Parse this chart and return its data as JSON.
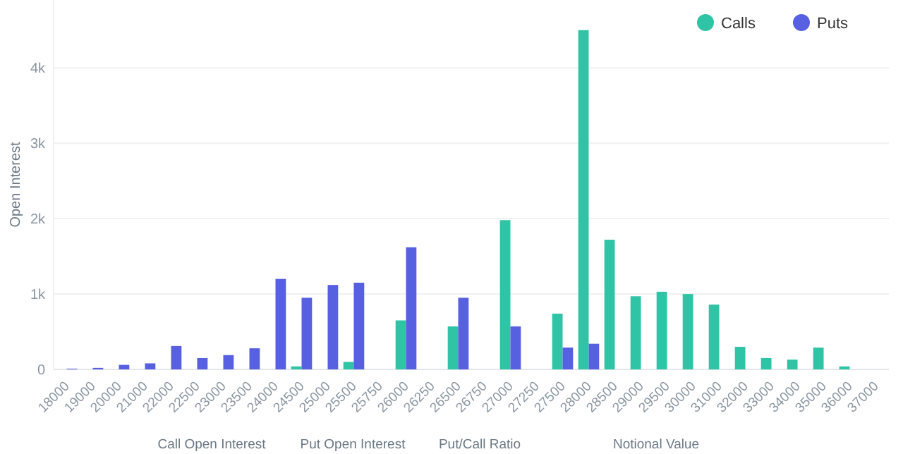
{
  "chart_data": {
    "type": "bar",
    "ylabel": "Open Interest",
    "categories": [
      "18000",
      "19000",
      "20000",
      "21000",
      "22000",
      "22500",
      "23000",
      "23500",
      "24000",
      "24500",
      "25000",
      "25500",
      "25750",
      "26000",
      "26250",
      "26500",
      "26750",
      "27000",
      "27250",
      "27500",
      "28000",
      "28500",
      "29000",
      "29500",
      "30000",
      "31000",
      "32000",
      "33000",
      "34000",
      "35000",
      "36000",
      "37000"
    ],
    "series": [
      {
        "name": "Calls",
        "color": "#2ec4a5",
        "values": [
          null,
          null,
          null,
          null,
          null,
          null,
          null,
          null,
          null,
          40,
          null,
          100,
          null,
          650,
          null,
          570,
          null,
          1980,
          null,
          740,
          4500,
          1720,
          970,
          1030,
          1000,
          860,
          300,
          150,
          130,
          290,
          40,
          null
        ]
      },
      {
        "name": "Puts",
        "color": "#5660e0",
        "values": [
          10,
          20,
          60,
          80,
          310,
          150,
          190,
          280,
          1200,
          950,
          1120,
          1150,
          null,
          1620,
          null,
          950,
          null,
          570,
          null,
          290,
          340,
          null,
          null,
          null,
          null,
          null,
          null,
          null,
          null,
          null,
          null,
          null
        ]
      }
    ],
    "ylim": [
      0,
      4900
    ],
    "yticks": [
      {
        "value": 0,
        "label": "0"
      },
      {
        "value": 1000,
        "label": "1k"
      },
      {
        "value": 2000,
        "label": "2k"
      },
      {
        "value": 3000,
        "label": "3k"
      },
      {
        "value": 4000,
        "label": "4k"
      }
    ],
    "grid": "y",
    "legend": "top right",
    "annotations": [
      "Call Open Interest",
      "Put Open Interest",
      "Put/Call Ratio",
      "Notional Value"
    ]
  }
}
